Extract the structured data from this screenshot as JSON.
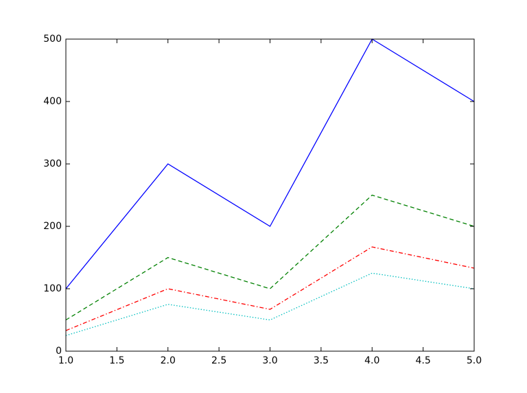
{
  "chart_data": {
    "type": "line",
    "x": [
      1,
      2,
      3,
      4,
      5
    ],
    "series": [
      {
        "color": "#0000ff",
        "style": "solid",
        "values": [
          100,
          300,
          200,
          500,
          400
        ]
      },
      {
        "color": "#008000",
        "style": "dashed",
        "values": [
          50,
          150,
          100,
          250,
          200
        ]
      },
      {
        "color": "#ff0000",
        "style": "dashdot",
        "values": [
          33,
          100,
          67,
          167,
          133
        ]
      },
      {
        "color": "#00bfbf",
        "style": "dotted",
        "values": [
          25,
          75,
          50,
          125,
          100
        ]
      }
    ],
    "xlim": [
      1,
      5
    ],
    "xticks": [
      {
        "value": 1,
        "label": "1.0"
      },
      1.5,
      {
        "value": 2,
        "label": "2.0"
      },
      2.5,
      {
        "value": 3,
        "label": "3.0"
      },
      3.5,
      {
        "value": 4,
        "label": "4.0"
      },
      4.5,
      {
        "value": 5,
        "label": "5.0"
      }
    ],
    "ylim": [
      0,
      500
    ],
    "yticks": [
      0,
      100,
      200,
      300,
      400,
      500
    ]
  }
}
